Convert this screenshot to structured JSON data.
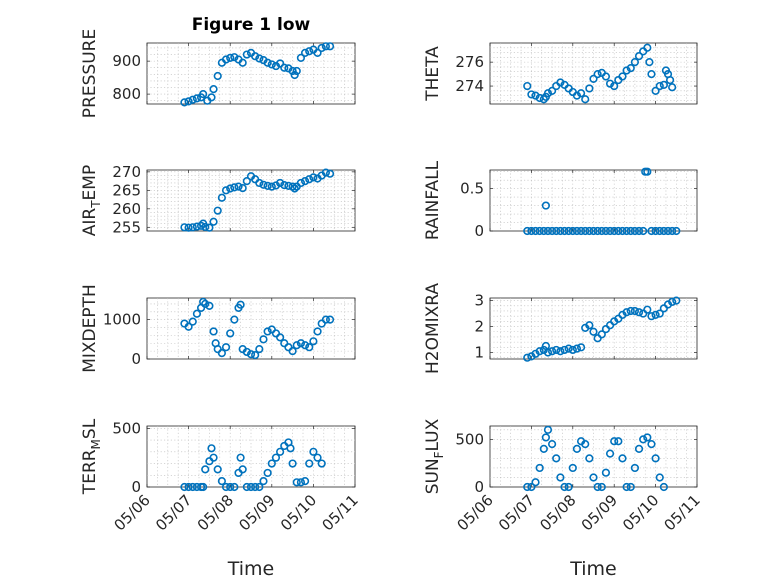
{
  "figure_title": "Figure 1 low",
  "marker_color": "#0072bd",
  "chart_data": [
    {
      "type": "scatter",
      "ylabel": "PRESSURE",
      "ylim": [
        770,
        955
      ],
      "yticks": [
        800,
        900
      ],
      "xlim": [
        0,
        5
      ],
      "xticks_shown": false,
      "grid": true,
      "points": [
        [
          0.9,
          775
        ],
        [
          1.0,
          778
        ],
        [
          1.1,
          783
        ],
        [
          1.2,
          787
        ],
        [
          1.3,
          790
        ],
        [
          1.35,
          800
        ],
        [
          1.45,
          780
        ],
        [
          1.55,
          790
        ],
        [
          1.6,
          815
        ],
        [
          1.7,
          855
        ],
        [
          1.8,
          895
        ],
        [
          1.9,
          905
        ],
        [
          2.0,
          910
        ],
        [
          2.1,
          912
        ],
        [
          2.2,
          905
        ],
        [
          2.3,
          895
        ],
        [
          2.4,
          920
        ],
        [
          2.5,
          925
        ],
        [
          2.6,
          915
        ],
        [
          2.7,
          908
        ],
        [
          2.8,
          903
        ],
        [
          2.9,
          895
        ],
        [
          3.0,
          890
        ],
        [
          3.1,
          885
        ],
        [
          3.2,
          893
        ],
        [
          3.3,
          880
        ],
        [
          3.4,
          878
        ],
        [
          3.5,
          870
        ],
        [
          3.55,
          858
        ],
        [
          3.6,
          870
        ],
        [
          3.7,
          910
        ],
        [
          3.8,
          925
        ],
        [
          3.9,
          930
        ],
        [
          4.0,
          935
        ],
        [
          4.1,
          925
        ],
        [
          4.2,
          940
        ],
        [
          4.3,
          945
        ],
        [
          4.4,
          945
        ]
      ]
    },
    {
      "type": "scatter",
      "ylabel": "THETA",
      "ylim": [
        272.5,
        277.6
      ],
      "yticks": [
        274,
        276
      ],
      "xlim": [
        0,
        5
      ],
      "xticks_shown": false,
      "grid": true,
      "points": [
        [
          0.9,
          274.0
        ],
        [
          1.0,
          273.3
        ],
        [
          1.1,
          273.2
        ],
        [
          1.2,
          273.0
        ],
        [
          1.3,
          272.9
        ],
        [
          1.35,
          273.1
        ],
        [
          1.4,
          273.4
        ],
        [
          1.5,
          273.6
        ],
        [
          1.6,
          274.0
        ],
        [
          1.7,
          274.3
        ],
        [
          1.8,
          274.1
        ],
        [
          1.9,
          273.8
        ],
        [
          2.0,
          273.5
        ],
        [
          2.1,
          273.2
        ],
        [
          2.2,
          273.4
        ],
        [
          2.3,
          272.9
        ],
        [
          2.4,
          273.8
        ],
        [
          2.5,
          274.6
        ],
        [
          2.6,
          275.0
        ],
        [
          2.7,
          275.1
        ],
        [
          2.8,
          274.8
        ],
        [
          2.9,
          274.2
        ],
        [
          3.0,
          274.0
        ],
        [
          3.1,
          274.5
        ],
        [
          3.2,
          274.8
        ],
        [
          3.3,
          275.3
        ],
        [
          3.4,
          275.5
        ],
        [
          3.5,
          276.0
        ],
        [
          3.6,
          276.5
        ],
        [
          3.7,
          276.9
        ],
        [
          3.8,
          277.2
        ],
        [
          3.85,
          276.0
        ],
        [
          3.9,
          275.0
        ],
        [
          4.0,
          273.6
        ],
        [
          4.1,
          274.0
        ],
        [
          4.2,
          274.1
        ],
        [
          4.25,
          275.3
        ],
        [
          4.3,
          275.0
        ],
        [
          4.35,
          274.5
        ],
        [
          4.4,
          273.9
        ]
      ]
    },
    {
      "type": "scatter",
      "ylabel": "AIR_TEMP",
      "ylim": [
        254,
        270.5
      ],
      "yticks": [
        255,
        260,
        265,
        270
      ],
      "xlim": [
        0,
        5
      ],
      "xticks_shown": false,
      "grid": true,
      "points": [
        [
          0.9,
          255.0
        ],
        [
          1.0,
          254.9
        ],
        [
          1.1,
          255.0
        ],
        [
          1.2,
          255.2
        ],
        [
          1.3,
          255.4
        ],
        [
          1.35,
          256.0
        ],
        [
          1.4,
          255.1
        ],
        [
          1.5,
          254.9
        ],
        [
          1.6,
          256.5
        ],
        [
          1.7,
          259.5
        ],
        [
          1.8,
          263.0
        ],
        [
          1.9,
          265.0
        ],
        [
          2.0,
          265.5
        ],
        [
          2.1,
          265.8
        ],
        [
          2.2,
          266.0
        ],
        [
          2.3,
          265.6
        ],
        [
          2.4,
          267.5
        ],
        [
          2.5,
          268.8
        ],
        [
          2.6,
          268.0
        ],
        [
          2.7,
          267.0
        ],
        [
          2.8,
          266.5
        ],
        [
          2.9,
          266.2
        ],
        [
          3.0,
          266.0
        ],
        [
          3.1,
          266.3
        ],
        [
          3.2,
          267.0
        ],
        [
          3.3,
          266.4
        ],
        [
          3.4,
          266.2
        ],
        [
          3.5,
          266.0
        ],
        [
          3.55,
          265.5
        ],
        [
          3.6,
          266.0
        ],
        [
          3.7,
          267.0
        ],
        [
          3.8,
          267.5
        ],
        [
          3.9,
          268.0
        ],
        [
          4.0,
          268.5
        ],
        [
          4.1,
          268.2
        ],
        [
          4.2,
          269.0
        ],
        [
          4.3,
          269.8
        ],
        [
          4.4,
          269.5
        ]
      ]
    },
    {
      "type": "scatter",
      "ylabel": "RAINFALL",
      "ylim": [
        0,
        0.72
      ],
      "yticks": [
        0,
        0.5
      ],
      "xlim": [
        0,
        5
      ],
      "xticks_shown": false,
      "grid": true,
      "points": [
        [
          0.9,
          0
        ],
        [
          1.0,
          0
        ],
        [
          1.1,
          0
        ],
        [
          1.2,
          0
        ],
        [
          1.3,
          0
        ],
        [
          1.35,
          0.3
        ],
        [
          1.4,
          0
        ],
        [
          1.5,
          0
        ],
        [
          1.6,
          0
        ],
        [
          1.7,
          0
        ],
        [
          1.8,
          0
        ],
        [
          1.9,
          0
        ],
        [
          2.0,
          0
        ],
        [
          2.1,
          0
        ],
        [
          2.2,
          0
        ],
        [
          2.3,
          0
        ],
        [
          2.4,
          0
        ],
        [
          2.5,
          0
        ],
        [
          2.6,
          0
        ],
        [
          2.7,
          0
        ],
        [
          2.8,
          0
        ],
        [
          2.9,
          0
        ],
        [
          3.0,
          0
        ],
        [
          3.1,
          0
        ],
        [
          3.2,
          0
        ],
        [
          3.3,
          0
        ],
        [
          3.4,
          0
        ],
        [
          3.5,
          0
        ],
        [
          3.6,
          0
        ],
        [
          3.7,
          0
        ],
        [
          3.75,
          0.7
        ],
        [
          3.8,
          0.7
        ],
        [
          3.9,
          0
        ],
        [
          4.0,
          0
        ],
        [
          4.1,
          0
        ],
        [
          4.2,
          0
        ],
        [
          4.3,
          0
        ],
        [
          4.4,
          0
        ],
        [
          4.5,
          0
        ]
      ]
    },
    {
      "type": "scatter",
      "ylabel": "MIXDEPTH",
      "ylim": [
        0,
        1550
      ],
      "yticks": [
        0,
        1000
      ],
      "xlim": [
        0,
        5
      ],
      "xticks_shown": false,
      "grid": true,
      "points": [
        [
          0.9,
          900
        ],
        [
          1.0,
          820
        ],
        [
          1.1,
          950
        ],
        [
          1.2,
          1150
        ],
        [
          1.3,
          1300
        ],
        [
          1.35,
          1450
        ],
        [
          1.4,
          1400
        ],
        [
          1.5,
          1350
        ],
        [
          1.6,
          700
        ],
        [
          1.65,
          400
        ],
        [
          1.7,
          250
        ],
        [
          1.8,
          150
        ],
        [
          1.9,
          300
        ],
        [
          2.0,
          650
        ],
        [
          2.1,
          1000
        ],
        [
          2.2,
          1300
        ],
        [
          2.25,
          1380
        ],
        [
          2.3,
          250
        ],
        [
          2.4,
          180
        ],
        [
          2.5,
          120
        ],
        [
          2.6,
          100
        ],
        [
          2.7,
          250
        ],
        [
          2.8,
          500
        ],
        [
          2.9,
          700
        ],
        [
          3.0,
          750
        ],
        [
          3.1,
          650
        ],
        [
          3.2,
          550
        ],
        [
          3.3,
          400
        ],
        [
          3.4,
          300
        ],
        [
          3.5,
          200
        ],
        [
          3.6,
          350
        ],
        [
          3.7,
          400
        ],
        [
          3.8,
          350
        ],
        [
          3.9,
          300
        ],
        [
          4.0,
          450
        ],
        [
          4.1,
          700
        ],
        [
          4.2,
          900
        ],
        [
          4.3,
          1000
        ],
        [
          4.4,
          1000
        ]
      ]
    },
    {
      "type": "scatter",
      "ylabel": "H2OMIXRA",
      "ylim": [
        0.75,
        3.1
      ],
      "yticks": [
        1,
        2,
        3
      ],
      "xlim": [
        0,
        5
      ],
      "xticks_shown": false,
      "grid": true,
      "points": [
        [
          0.9,
          0.8
        ],
        [
          1.0,
          0.85
        ],
        [
          1.1,
          0.95
        ],
        [
          1.2,
          1.05
        ],
        [
          1.3,
          1.1
        ],
        [
          1.35,
          1.25
        ],
        [
          1.4,
          1.0
        ],
        [
          1.5,
          1.05
        ],
        [
          1.6,
          1.1
        ],
        [
          1.7,
          1.05
        ],
        [
          1.8,
          1.1
        ],
        [
          1.9,
          1.15
        ],
        [
          2.0,
          1.1
        ],
        [
          2.1,
          1.15
        ],
        [
          2.2,
          1.2
        ],
        [
          2.3,
          1.95
        ],
        [
          2.4,
          2.05
        ],
        [
          2.5,
          1.8
        ],
        [
          2.6,
          1.55
        ],
        [
          2.7,
          1.7
        ],
        [
          2.8,
          1.9
        ],
        [
          2.9,
          2.05
        ],
        [
          3.0,
          2.2
        ],
        [
          3.1,
          2.3
        ],
        [
          3.2,
          2.45
        ],
        [
          3.3,
          2.55
        ],
        [
          3.4,
          2.6
        ],
        [
          3.5,
          2.6
        ],
        [
          3.6,
          2.55
        ],
        [
          3.7,
          2.5
        ],
        [
          3.8,
          2.65
        ],
        [
          3.9,
          2.4
        ],
        [
          4.0,
          2.45
        ],
        [
          4.1,
          2.5
        ],
        [
          4.2,
          2.7
        ],
        [
          4.3,
          2.85
        ],
        [
          4.4,
          2.95
        ],
        [
          4.5,
          3.0
        ]
      ]
    },
    {
      "type": "scatter",
      "ylabel": "TERR_MSL",
      "ylim": [
        0,
        520
      ],
      "yticks": [
        0,
        500
      ],
      "xlim": [
        0,
        5
      ],
      "xticks_shown": false,
      "grid": true,
      "points": [
        [
          0.9,
          0
        ],
        [
          1.0,
          0
        ],
        [
          1.1,
          0
        ],
        [
          1.2,
          0
        ],
        [
          1.3,
          0
        ],
        [
          1.35,
          0
        ],
        [
          1.4,
          150
        ],
        [
          1.5,
          220
        ],
        [
          1.55,
          330
        ],
        [
          1.6,
          250
        ],
        [
          1.7,
          150
        ],
        [
          1.8,
          50
        ],
        [
          1.9,
          0
        ],
        [
          2.0,
          0
        ],
        [
          2.1,
          0
        ],
        [
          2.2,
          120
        ],
        [
          2.25,
          250
        ],
        [
          2.3,
          150
        ],
        [
          2.4,
          0
        ],
        [
          2.5,
          0
        ],
        [
          2.6,
          0
        ],
        [
          2.7,
          0
        ],
        [
          2.8,
          50
        ],
        [
          2.9,
          120
        ],
        [
          3.0,
          200
        ],
        [
          3.1,
          250
        ],
        [
          3.2,
          300
        ],
        [
          3.3,
          350
        ],
        [
          3.4,
          380
        ],
        [
          3.45,
          330
        ],
        [
          3.5,
          200
        ],
        [
          3.6,
          40
        ],
        [
          3.7,
          40
        ],
        [
          3.8,
          50
        ],
        [
          3.9,
          200
        ],
        [
          4.0,
          300
        ],
        [
          4.1,
          250
        ],
        [
          4.2,
          200
        ]
      ]
    },
    {
      "type": "scatter",
      "ylabel": "SUN_FLUX",
      "ylim": [
        0,
        640
      ],
      "yticks": [
        0,
        500
      ],
      "xlim": [
        0,
        5
      ],
      "xticks_shown": false,
      "grid": true,
      "points": [
        [
          0.9,
          0
        ],
        [
          1.0,
          0
        ],
        [
          1.1,
          50
        ],
        [
          1.2,
          200
        ],
        [
          1.3,
          400
        ],
        [
          1.35,
          520
        ],
        [
          1.4,
          600
        ],
        [
          1.5,
          450
        ],
        [
          1.6,
          300
        ],
        [
          1.7,
          100
        ],
        [
          1.8,
          0
        ],
        [
          1.9,
          0
        ],
        [
          2.0,
          200
        ],
        [
          2.1,
          400
        ],
        [
          2.2,
          480
        ],
        [
          2.3,
          450
        ],
        [
          2.4,
          300
        ],
        [
          2.5,
          100
        ],
        [
          2.6,
          0
        ],
        [
          2.7,
          0
        ],
        [
          2.8,
          150
        ],
        [
          2.9,
          350
        ],
        [
          3.0,
          480
        ],
        [
          3.1,
          480
        ],
        [
          3.2,
          300
        ],
        [
          3.3,
          0
        ],
        [
          3.4,
          0
        ],
        [
          3.5,
          200
        ],
        [
          3.6,
          400
        ],
        [
          3.7,
          500
        ],
        [
          3.8,
          520
        ],
        [
          3.9,
          450
        ],
        [
          4.0,
          300
        ],
        [
          4.1,
          100
        ],
        [
          4.2,
          0
        ]
      ]
    }
  ],
  "bottom_axis": {
    "xticklabels": [
      "05/06",
      "05/07",
      "05/08",
      "05/09",
      "05/10",
      "05/11"
    ],
    "xlabel": "Time"
  }
}
